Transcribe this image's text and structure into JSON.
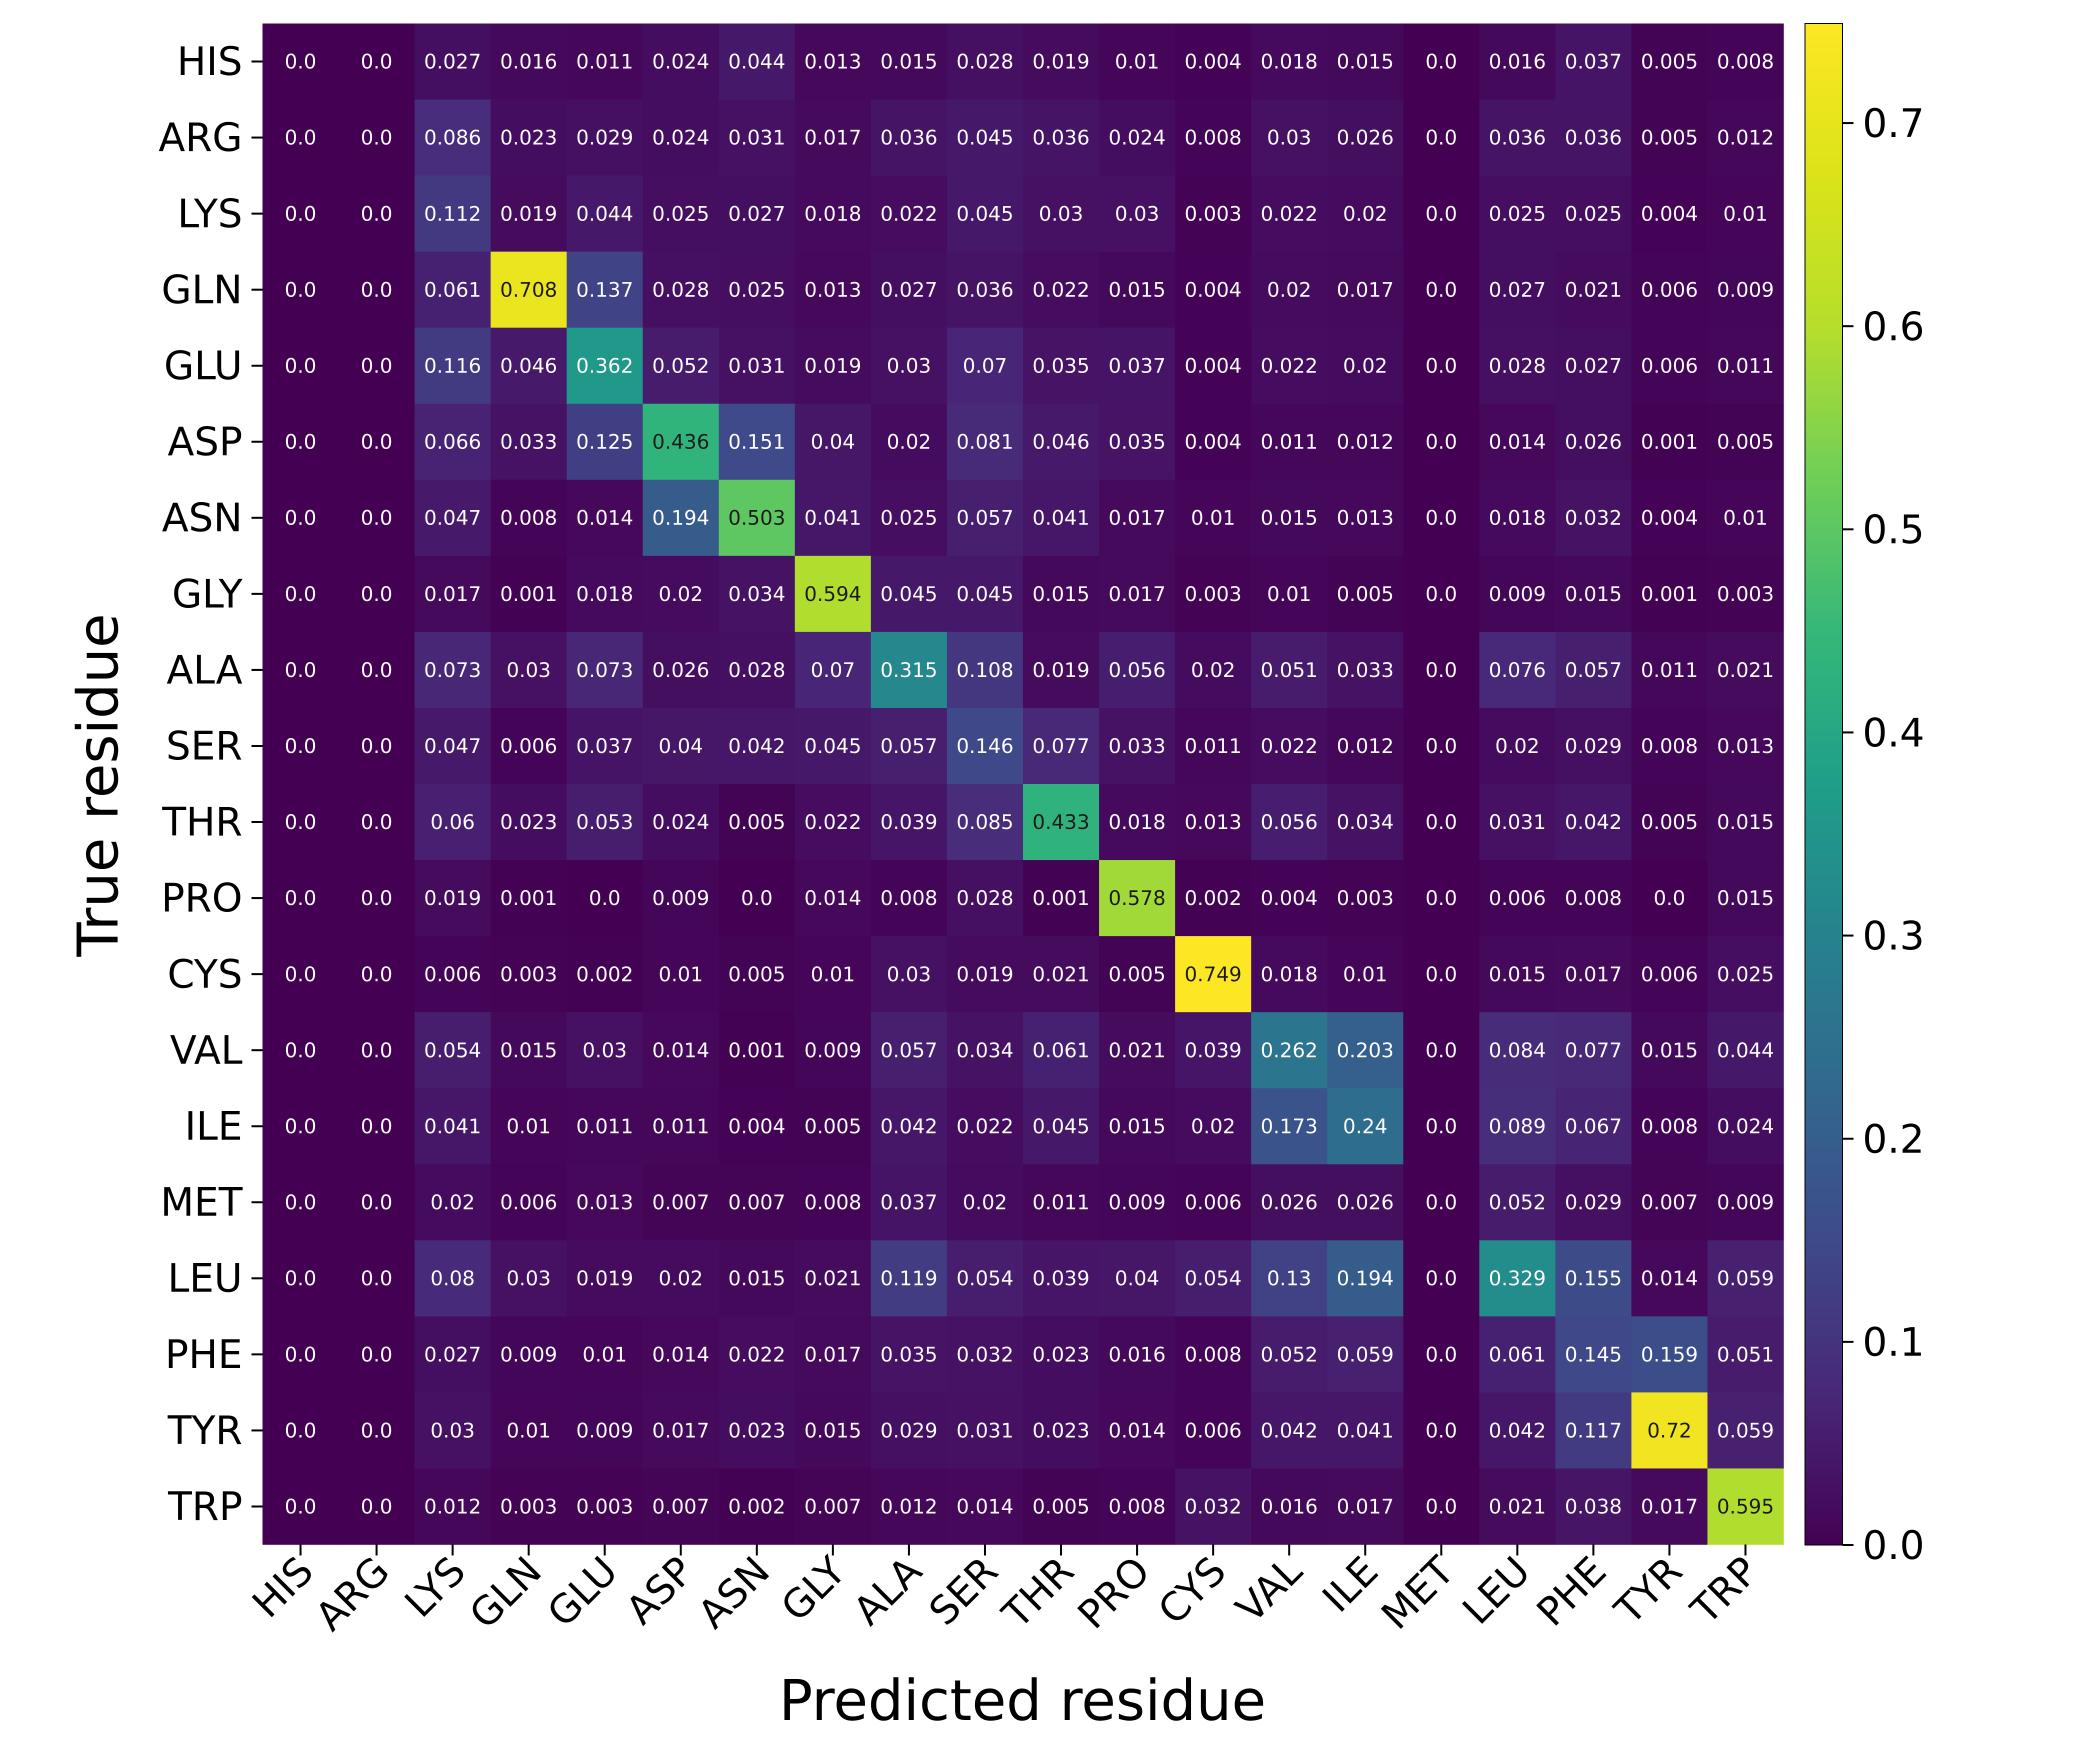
{
  "chart_data": {
    "type": "heatmap",
    "title": "",
    "xlabel": "Predicted residue",
    "ylabel": "True residue",
    "x_categories": [
      "HIS",
      "ARG",
      "LYS",
      "GLN",
      "GLU",
      "ASP",
      "ASN",
      "GLY",
      "ALA",
      "SER",
      "THR",
      "PRO",
      "CYS",
      "VAL",
      "ILE",
      "MET",
      "LEU",
      "PHE",
      "TYR",
      "TRP"
    ],
    "y_categories": [
      "HIS",
      "ARG",
      "LYS",
      "GLN",
      "GLU",
      "ASP",
      "ASN",
      "GLY",
      "ALA",
      "SER",
      "THR",
      "PRO",
      "CYS",
      "VAL",
      "ILE",
      "MET",
      "LEU",
      "PHE",
      "TYR",
      "TRP"
    ],
    "values": [
      [
        "0.0",
        "0.0",
        "0.027",
        "0.016",
        "0.011",
        "0.024",
        "0.044",
        "0.013",
        "0.015",
        "0.028",
        "0.019",
        "0.01",
        "0.004",
        "0.018",
        "0.015",
        "0.0",
        "0.016",
        "0.037",
        "0.005",
        "0.008"
      ],
      [
        "0.0",
        "0.0",
        "0.086",
        "0.023",
        "0.029",
        "0.024",
        "0.031",
        "0.017",
        "0.036",
        "0.045",
        "0.036",
        "0.024",
        "0.008",
        "0.03",
        "0.026",
        "0.0",
        "0.036",
        "0.036",
        "0.005",
        "0.012"
      ],
      [
        "0.0",
        "0.0",
        "0.112",
        "0.019",
        "0.044",
        "0.025",
        "0.027",
        "0.018",
        "0.022",
        "0.045",
        "0.03",
        "0.03",
        "0.003",
        "0.022",
        "0.02",
        "0.0",
        "0.025",
        "0.025",
        "0.004",
        "0.01"
      ],
      [
        "0.0",
        "0.0",
        "0.061",
        "0.708",
        "0.137",
        "0.028",
        "0.025",
        "0.013",
        "0.027",
        "0.036",
        "0.022",
        "0.015",
        "0.004",
        "0.02",
        "0.017",
        "0.0",
        "0.027",
        "0.021",
        "0.006",
        "0.009"
      ],
      [
        "0.0",
        "0.0",
        "0.116",
        "0.046",
        "0.362",
        "0.052",
        "0.031",
        "0.019",
        "0.03",
        "0.07",
        "0.035",
        "0.037",
        "0.004",
        "0.022",
        "0.02",
        "0.0",
        "0.028",
        "0.027",
        "0.006",
        "0.011"
      ],
      [
        "0.0",
        "0.0",
        "0.066",
        "0.033",
        "0.125",
        "0.436",
        "0.151",
        "0.04",
        "0.02",
        "0.081",
        "0.046",
        "0.035",
        "0.004",
        "0.011",
        "0.012",
        "0.0",
        "0.014",
        "0.026",
        "0.001",
        "0.005"
      ],
      [
        "0.0",
        "0.0",
        "0.047",
        "0.008",
        "0.014",
        "0.194",
        "0.503",
        "0.041",
        "0.025",
        "0.057",
        "0.041",
        "0.017",
        "0.01",
        "0.015",
        "0.013",
        "0.0",
        "0.018",
        "0.032",
        "0.004",
        "0.01"
      ],
      [
        "0.0",
        "0.0",
        "0.017",
        "0.001",
        "0.018",
        "0.02",
        "0.034",
        "0.594",
        "0.045",
        "0.045",
        "0.015",
        "0.017",
        "0.003",
        "0.01",
        "0.005",
        "0.0",
        "0.009",
        "0.015",
        "0.001",
        "0.003"
      ],
      [
        "0.0",
        "0.0",
        "0.073",
        "0.03",
        "0.073",
        "0.026",
        "0.028",
        "0.07",
        "0.315",
        "0.108",
        "0.019",
        "0.056",
        "0.02",
        "0.051",
        "0.033",
        "0.0",
        "0.076",
        "0.057",
        "0.011",
        "0.021"
      ],
      [
        "0.0",
        "0.0",
        "0.047",
        "0.006",
        "0.037",
        "0.04",
        "0.042",
        "0.045",
        "0.057",
        "0.146",
        "0.077",
        "0.033",
        "0.011",
        "0.022",
        "0.012",
        "0.0",
        "0.02",
        "0.029",
        "0.008",
        "0.013"
      ],
      [
        "0.0",
        "0.0",
        "0.06",
        "0.023",
        "0.053",
        "0.024",
        "0.005",
        "0.022",
        "0.039",
        "0.085",
        "0.433",
        "0.018",
        "0.013",
        "0.056",
        "0.034",
        "0.0",
        "0.031",
        "0.042",
        "0.005",
        "0.015"
      ],
      [
        "0.0",
        "0.0",
        "0.019",
        "0.001",
        "0.0",
        "0.009",
        "0.0",
        "0.014",
        "0.008",
        "0.028",
        "0.001",
        "0.578",
        "0.002",
        "0.004",
        "0.003",
        "0.0",
        "0.006",
        "0.008",
        "0.0",
        "0.015"
      ],
      [
        "0.0",
        "0.0",
        "0.006",
        "0.003",
        "0.002",
        "0.01",
        "0.005",
        "0.01",
        "0.03",
        "0.019",
        "0.021",
        "0.005",
        "0.749",
        "0.018",
        "0.01",
        "0.0",
        "0.015",
        "0.017",
        "0.006",
        "0.025"
      ],
      [
        "0.0",
        "0.0",
        "0.054",
        "0.015",
        "0.03",
        "0.014",
        "0.001",
        "0.009",
        "0.057",
        "0.034",
        "0.061",
        "0.021",
        "0.039",
        "0.262",
        "0.203",
        "0.0",
        "0.084",
        "0.077",
        "0.015",
        "0.044"
      ],
      [
        "0.0",
        "0.0",
        "0.041",
        "0.01",
        "0.011",
        "0.011",
        "0.004",
        "0.005",
        "0.042",
        "0.022",
        "0.045",
        "0.015",
        "0.02",
        "0.173",
        "0.24",
        "0.0",
        "0.089",
        "0.067",
        "0.008",
        "0.024"
      ],
      [
        "0.0",
        "0.0",
        "0.02",
        "0.006",
        "0.013",
        "0.007",
        "0.007",
        "0.008",
        "0.037",
        "0.02",
        "0.011",
        "0.009",
        "0.006",
        "0.026",
        "0.026",
        "0.0",
        "0.052",
        "0.029",
        "0.007",
        "0.009"
      ],
      [
        "0.0",
        "0.0",
        "0.08",
        "0.03",
        "0.019",
        "0.02",
        "0.015",
        "0.021",
        "0.119",
        "0.054",
        "0.039",
        "0.04",
        "0.054",
        "0.13",
        "0.194",
        "0.0",
        "0.329",
        "0.155",
        "0.014",
        "0.059"
      ],
      [
        "0.0",
        "0.0",
        "0.027",
        "0.009",
        "0.01",
        "0.014",
        "0.022",
        "0.017",
        "0.035",
        "0.032",
        "0.023",
        "0.016",
        "0.008",
        "0.052",
        "0.059",
        "0.0",
        "0.061",
        "0.145",
        "0.159",
        "0.051"
      ],
      [
        "0.0",
        "0.0",
        "0.03",
        "0.01",
        "0.009",
        "0.017",
        "0.023",
        "0.015",
        "0.029",
        "0.031",
        "0.023",
        "0.014",
        "0.006",
        "0.042",
        "0.041",
        "0.0",
        "0.042",
        "0.117",
        "0.72",
        "0.059"
      ],
      [
        "0.0",
        "0.0",
        "0.012",
        "0.003",
        "0.003",
        "0.007",
        "0.002",
        "0.007",
        "0.012",
        "0.014",
        "0.005",
        "0.008",
        "0.032",
        "0.016",
        "0.017",
        "0.0",
        "0.021",
        "0.038",
        "0.017",
        "0.595"
      ]
    ],
    "colormap": "viridis",
    "vmin": 0,
    "vmax": 0.749,
    "colorbar_ticks": [
      "0.0",
      "0.1",
      "0.2",
      "0.3",
      "0.4",
      "0.5",
      "0.6",
      "0.7"
    ],
    "grid": false,
    "legend": "colorbar-right"
  }
}
